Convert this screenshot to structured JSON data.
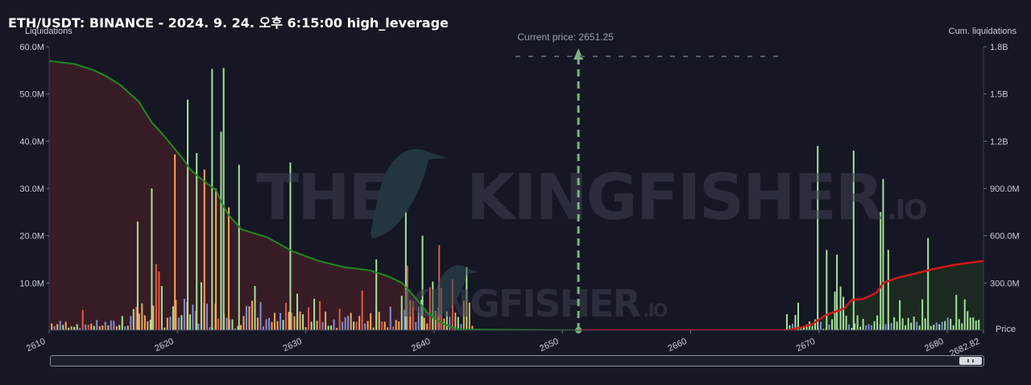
{
  "title": "ETH/USDT: BINANCE - 2024. 9. 24. 오후 6:15:00 high_leverage",
  "scrollbar": {
    "handle_icon": "grip-icon"
  },
  "chart_data": {
    "type": "bar",
    "left_axis_label": "Liquidations",
    "right_axis_label": "Cum. liquidations",
    "x_axis_label": "Price",
    "current_price_label": "Current price: 2651.25",
    "current_price": 2651.25,
    "watermark": "THE KINGFISHER.IO",
    "xlim": [
      2610,
      2682.82
    ],
    "x_ticks": [
      "2610",
      "2620",
      "2630",
      "2640",
      "2650",
      "2660",
      "2670",
      "2680",
      "2682.82"
    ],
    "ylim_left": [
      0,
      60000000
    ],
    "y_ticks_left": [
      "60.0M",
      "50.0M",
      "40.0M",
      "30.0M",
      "20.0M",
      "10.0M"
    ],
    "ylim_right": [
      0,
      1800000000
    ],
    "y_ticks_right": [
      "1.8B",
      "1.5B",
      "1.2B",
      "900.0M",
      "600.0M",
      "300.0M"
    ],
    "colors": {
      "short_cum_line": "#1e8a1e",
      "long_cum_line": "#d01818",
      "short_fill": "#3a1c26",
      "long_fill": "#1b2a22",
      "bar_green": "#a4e39a",
      "bar_orange": "#f2a65a",
      "bar_red": "#e05a4a",
      "bar_blue": "#7d8fd6",
      "current_price_line": "#7fb27f"
    },
    "major_bars": [
      {
        "x": 2620.8,
        "value": 48800000,
        "color": "green"
      },
      {
        "x": 2619.8,
        "value": 37200000,
        "color": "orange"
      },
      {
        "x": 2621.5,
        "value": 37500000,
        "color": "green"
      },
      {
        "x": 2622.1,
        "value": 34000000,
        "color": "orange"
      },
      {
        "x": 2622.7,
        "value": 55300000,
        "color": "green"
      },
      {
        "x": 2623.0,
        "value": 30000000,
        "color": "orange"
      },
      {
        "x": 2623.4,
        "value": 42000000,
        "color": "green"
      },
      {
        "x": 2623.6,
        "value": 55500000,
        "color": "green"
      },
      {
        "x": 2624.0,
        "value": 26000000,
        "color": "orange"
      },
      {
        "x": 2624.8,
        "value": 35000000,
        "color": "green"
      },
      {
        "x": 2618.0,
        "value": 30000000,
        "color": "green"
      },
      {
        "x": 2616.9,
        "value": 23000000,
        "color": "green"
      },
      {
        "x": 2628.8,
        "value": 35500000,
        "color": "green"
      },
      {
        "x": 2637.8,
        "value": 25000000,
        "color": "green"
      },
      {
        "x": 2639.1,
        "value": 20000000,
        "color": "green"
      },
      {
        "x": 2635.5,
        "value": 15000000,
        "color": "green"
      },
      {
        "x": 2640.4,
        "value": 18000000,
        "color": "red"
      },
      {
        "x": 2669.9,
        "value": 39000000,
        "color": "green"
      },
      {
        "x": 2670.6,
        "value": 17000000,
        "color": "green"
      },
      {
        "x": 2671.4,
        "value": 16000000,
        "color": "green"
      },
      {
        "x": 2672.7,
        "value": 38000000,
        "color": "green"
      },
      {
        "x": 2675.0,
        "value": 32000000,
        "color": "green"
      },
      {
        "x": 2674.8,
        "value": 25000000,
        "color": "green"
      },
      {
        "x": 2675.4,
        "value": 17000000,
        "color": "green"
      },
      {
        "x": 2678.5,
        "value": 19500000,
        "color": "green"
      }
    ],
    "short_cum_liquidations": {
      "x": [
        2610,
        2612,
        2613.5,
        2614.5,
        2615.5,
        2617,
        2618,
        2619,
        2620,
        2620.5,
        2621,
        2622,
        2623,
        2623.5,
        2624,
        2625,
        2627,
        2629,
        2631,
        2633,
        2635,
        2636.5,
        2637.5,
        2638.5,
        2639.5,
        2640.5,
        2641.5,
        2642,
        2651.25
      ],
      "values": [
        1710000000,
        1690000000,
        1650000000,
        1610000000,
        1560000000,
        1450000000,
        1320000000,
        1230000000,
        1130000000,
        1080000000,
        1020000000,
        950000000,
        890000000,
        800000000,
        730000000,
        640000000,
        590000000,
        500000000,
        440000000,
        400000000,
        380000000,
        340000000,
        300000000,
        210000000,
        110000000,
        50000000,
        15000000,
        5000000,
        0
      ]
    },
    "long_cum_liquidations": {
      "x": [
        2651.25,
        2667.5,
        2668.5,
        2669.5,
        2670.5,
        2671.5,
        2672,
        2672.5,
        2673.5,
        2674.5,
        2675,
        2676,
        2677.5,
        2679,
        2680.5,
        2682.82
      ],
      "values": [
        0,
        0,
        15000000,
        40000000,
        95000000,
        125000000,
        140000000,
        190000000,
        200000000,
        240000000,
        300000000,
        330000000,
        360000000,
        390000000,
        415000000,
        440000000
      ]
    }
  }
}
